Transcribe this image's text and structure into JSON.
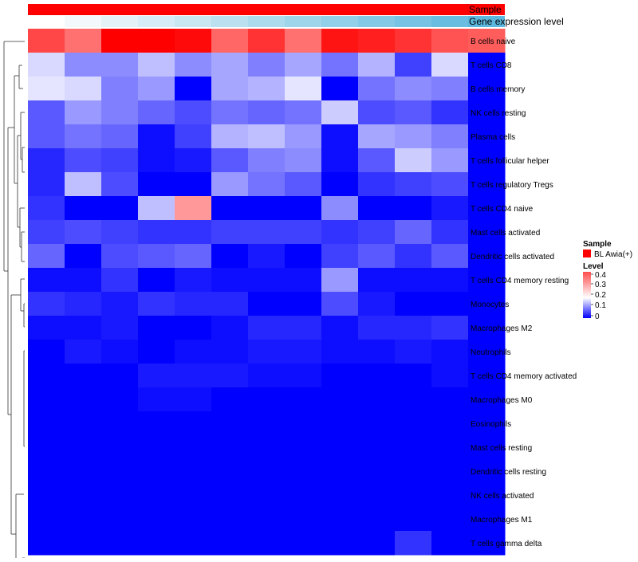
{
  "chart_data": {
    "type": "heatmap",
    "title": "",
    "annotations": {
      "sample_label": "Sample",
      "gene_label": "Gene expression level",
      "sample_color": "#ff0000",
      "gene_colors": [
        "#ffffff",
        "#f2f8fb",
        "#e4f2f8",
        "#d6ecf6",
        "#c9e6f3",
        "#bbe1f0",
        "#addbee",
        "#9fd5eb",
        "#92cfe8",
        "#84c9e6",
        "#76c3e3",
        "#69bde0",
        "#5bb7dd"
      ]
    },
    "rows": [
      "B cells naive",
      "T cells CD8",
      "B cells memory",
      "NK cells resting",
      "Plasma cells",
      "T cells follicular helper",
      "T cells regulatory  Tregs",
      "T cells CD4 naive",
      "Mast cells activated",
      "Dendritic cells activated",
      "T cells CD4 memory resting",
      "Monocytes",
      "Macrophages M2",
      "Neutrophils",
      "T cells CD4 memory activated",
      "Macrophages M0",
      "Eosinophils",
      "Mast cells resting",
      "Dendritic cells resting",
      "NK cells activated",
      "Macrophages M1",
      "T cells gamma delta"
    ],
    "n_columns": 13,
    "values": [
      [
        0.38,
        0.34,
        0.45,
        0.45,
        0.44,
        0.35,
        0.4,
        0.34,
        0.43,
        0.42,
        0.4,
        0.37,
        0.36
      ],
      [
        0.17,
        0.11,
        0.11,
        0.15,
        0.11,
        0.13,
        0.1,
        0.13,
        0.09,
        0.14,
        0.05,
        0.17,
        0
      ],
      [
        0.18,
        0.17,
        0.1,
        0.12,
        0,
        0.13,
        0.14,
        0.18,
        0,
        0.09,
        0.11,
        0.1,
        0
      ],
      [
        0.07,
        0.12,
        0.1,
        0.08,
        0.06,
        0.09,
        0.08,
        0.09,
        0.16,
        0.06,
        0.07,
        0.04,
        0
      ],
      [
        0.07,
        0.09,
        0.08,
        0.01,
        0.05,
        0.14,
        0.15,
        0.12,
        0.01,
        0.13,
        0.12,
        0.1,
        0
      ],
      [
        0.03,
        0.06,
        0.05,
        0.01,
        0.02,
        0.07,
        0.1,
        0.11,
        0.01,
        0.07,
        0.16,
        0.12,
        0
      ],
      [
        0.03,
        0.15,
        0.06,
        0,
        0,
        0.12,
        0.09,
        0.07,
        0,
        0.04,
        0.05,
        0.06,
        0
      ],
      [
        0.04,
        0,
        0,
        0.15,
        0.3,
        0,
        0,
        0,
        0.11,
        0,
        0,
        0.02,
        0
      ],
      [
        0.05,
        0.06,
        0.05,
        0.04,
        0.04,
        0.05,
        0.05,
        0.05,
        0.04,
        0.05,
        0.08,
        0.04,
        0
      ],
      [
        0.08,
        0,
        0.06,
        0.07,
        0.08,
        0,
        0.02,
        0,
        0.05,
        0.07,
        0.04,
        0.07,
        0
      ],
      [
        0.01,
        0.01,
        0.04,
        0,
        0.02,
        0.01,
        0.01,
        0.01,
        0.12,
        0.01,
        0.01,
        0.01,
        0
      ],
      [
        0.04,
        0.03,
        0.02,
        0.04,
        0.03,
        0.03,
        0,
        0,
        0.06,
        0.02,
        0,
        0,
        0
      ],
      [
        0.01,
        0.01,
        0.02,
        0,
        0,
        0.01,
        0.03,
        0.03,
        0.01,
        0.03,
        0.03,
        0.04,
        0
      ],
      [
        0,
        0.02,
        0.01,
        0,
        0.01,
        0.01,
        0.02,
        0.02,
        0.01,
        0.01,
        0.02,
        0.01,
        0
      ],
      [
        0,
        0,
        0,
        0.02,
        0.02,
        0.02,
        0.01,
        0.01,
        0,
        0,
        0,
        0.01,
        0
      ],
      [
        0,
        0,
        0,
        0.01,
        0.01,
        0,
        0,
        0,
        0,
        0,
        0,
        0,
        0
      ],
      [
        0,
        0,
        0,
        0,
        0,
        0,
        0,
        0,
        0,
        0,
        0,
        0,
        0
      ],
      [
        0,
        0,
        0,
        0,
        0,
        0,
        0,
        0,
        0,
        0,
        0,
        0,
        0
      ],
      [
        0,
        0,
        0,
        0,
        0,
        0,
        0,
        0,
        0,
        0,
        0,
        0,
        0
      ],
      [
        0,
        0,
        0,
        0,
        0,
        0,
        0,
        0,
        0,
        0,
        0,
        0,
        0
      ],
      [
        0,
        0,
        0,
        0,
        0,
        0,
        0,
        0,
        0,
        0,
        0,
        0,
        0
      ],
      [
        0,
        0,
        0,
        0,
        0,
        0,
        0,
        0,
        0,
        0,
        0.04,
        0,
        0
      ]
    ],
    "color_scale": {
      "low": "#0000ff",
      "mid": "#ffffff",
      "high": "#ff0000",
      "midpoint": 0.2,
      "max": 0.45
    },
    "legend": {
      "sample_title": "Sample",
      "sample_entry": "BL Awia(+)",
      "level_title": "Level",
      "level_ticks": [
        "0.4",
        "0.3",
        "0.2",
        "0.1",
        "0"
      ]
    }
  }
}
